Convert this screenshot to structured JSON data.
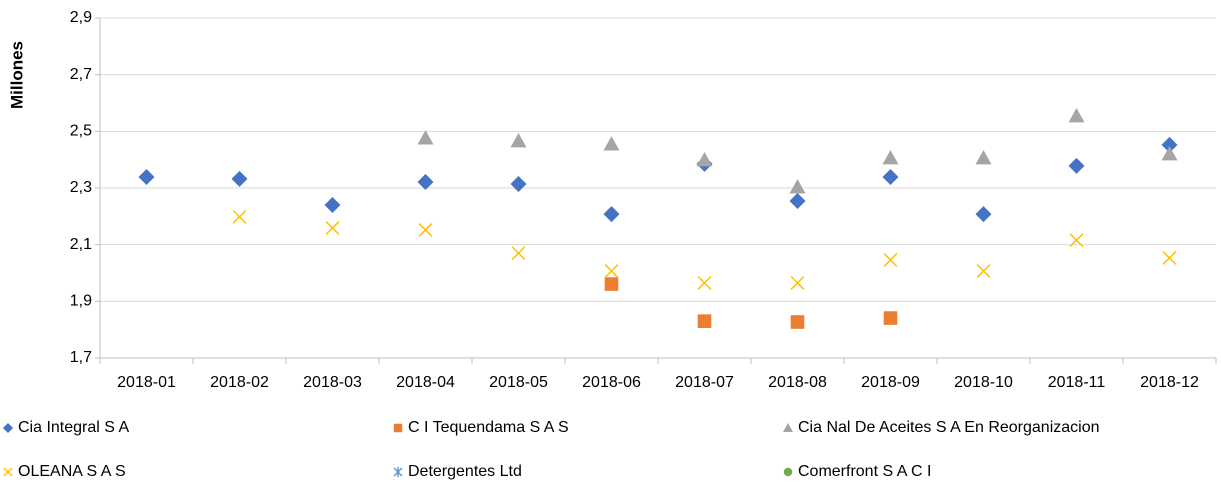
{
  "chart_data": {
    "type": "scatter",
    "y_label": "Millones",
    "categories": [
      "2018-01",
      "2018-02",
      "2018-03",
      "2018-04",
      "2018-05",
      "2018-06",
      "2018-07",
      "2018-08",
      "2018-09",
      "2018-10",
      "2018-11",
      "2018-12"
    ],
    "ylim": [
      1.7,
      2.9
    ],
    "yticks": [
      {
        "value": 1.7,
        "label": "1,7"
      },
      {
        "value": 1.9,
        "label": "1,9"
      },
      {
        "value": 2.1,
        "label": "2,1"
      },
      {
        "value": 2.3,
        "label": "2,3"
      },
      {
        "value": 2.5,
        "label": "2,5"
      },
      {
        "value": 2.7,
        "label": "2,7"
      },
      {
        "value": 2.9,
        "label": "2,9"
      }
    ],
    "grid": true,
    "legend": "bottom",
    "series": [
      {
        "name": "Cia Integral S A",
        "color": "#4472c4",
        "marker": "diamond",
        "values": [
          2.339,
          2.332,
          2.24,
          2.321,
          2.314,
          2.208,
          2.385,
          2.254,
          2.339,
          2.208,
          2.378,
          2.452
        ]
      },
      {
        "name": "C I Tequendama S A S",
        "color": "#ed7d31",
        "marker": "square",
        "values": [
          null,
          null,
          null,
          null,
          null,
          1.961,
          1.83,
          1.827,
          1.841,
          null,
          null,
          null
        ]
      },
      {
        "name": "Cia Nal De Aceites S A En Reorganizacion",
        "color": "#a5a5a5",
        "marker": "triangle",
        "values": [
          null,
          null,
          null,
          2.476,
          2.466,
          2.455,
          2.399,
          2.303,
          2.406,
          2.406,
          2.554,
          2.42
        ]
      },
      {
        "name": "OLEANA S A S",
        "color": "#ffc000",
        "marker": "x",
        "values": [
          null,
          2.198,
          2.159,
          2.152,
          2.07,
          2.007,
          1.965,
          1.965,
          2.046,
          2.007,
          2.116,
          2.053
        ]
      },
      {
        "name": "Detergentes Ltd",
        "color": "#5b9bd5",
        "marker": "star",
        "values": [
          null,
          null,
          null,
          null,
          null,
          null,
          null,
          null,
          null,
          null,
          null,
          null
        ]
      },
      {
        "name": "Comerfront S A C I",
        "color": "#70ad47",
        "marker": "circle",
        "values": [
          null,
          null,
          null,
          null,
          null,
          null,
          null,
          null,
          null,
          null,
          null,
          null
        ]
      }
    ]
  }
}
